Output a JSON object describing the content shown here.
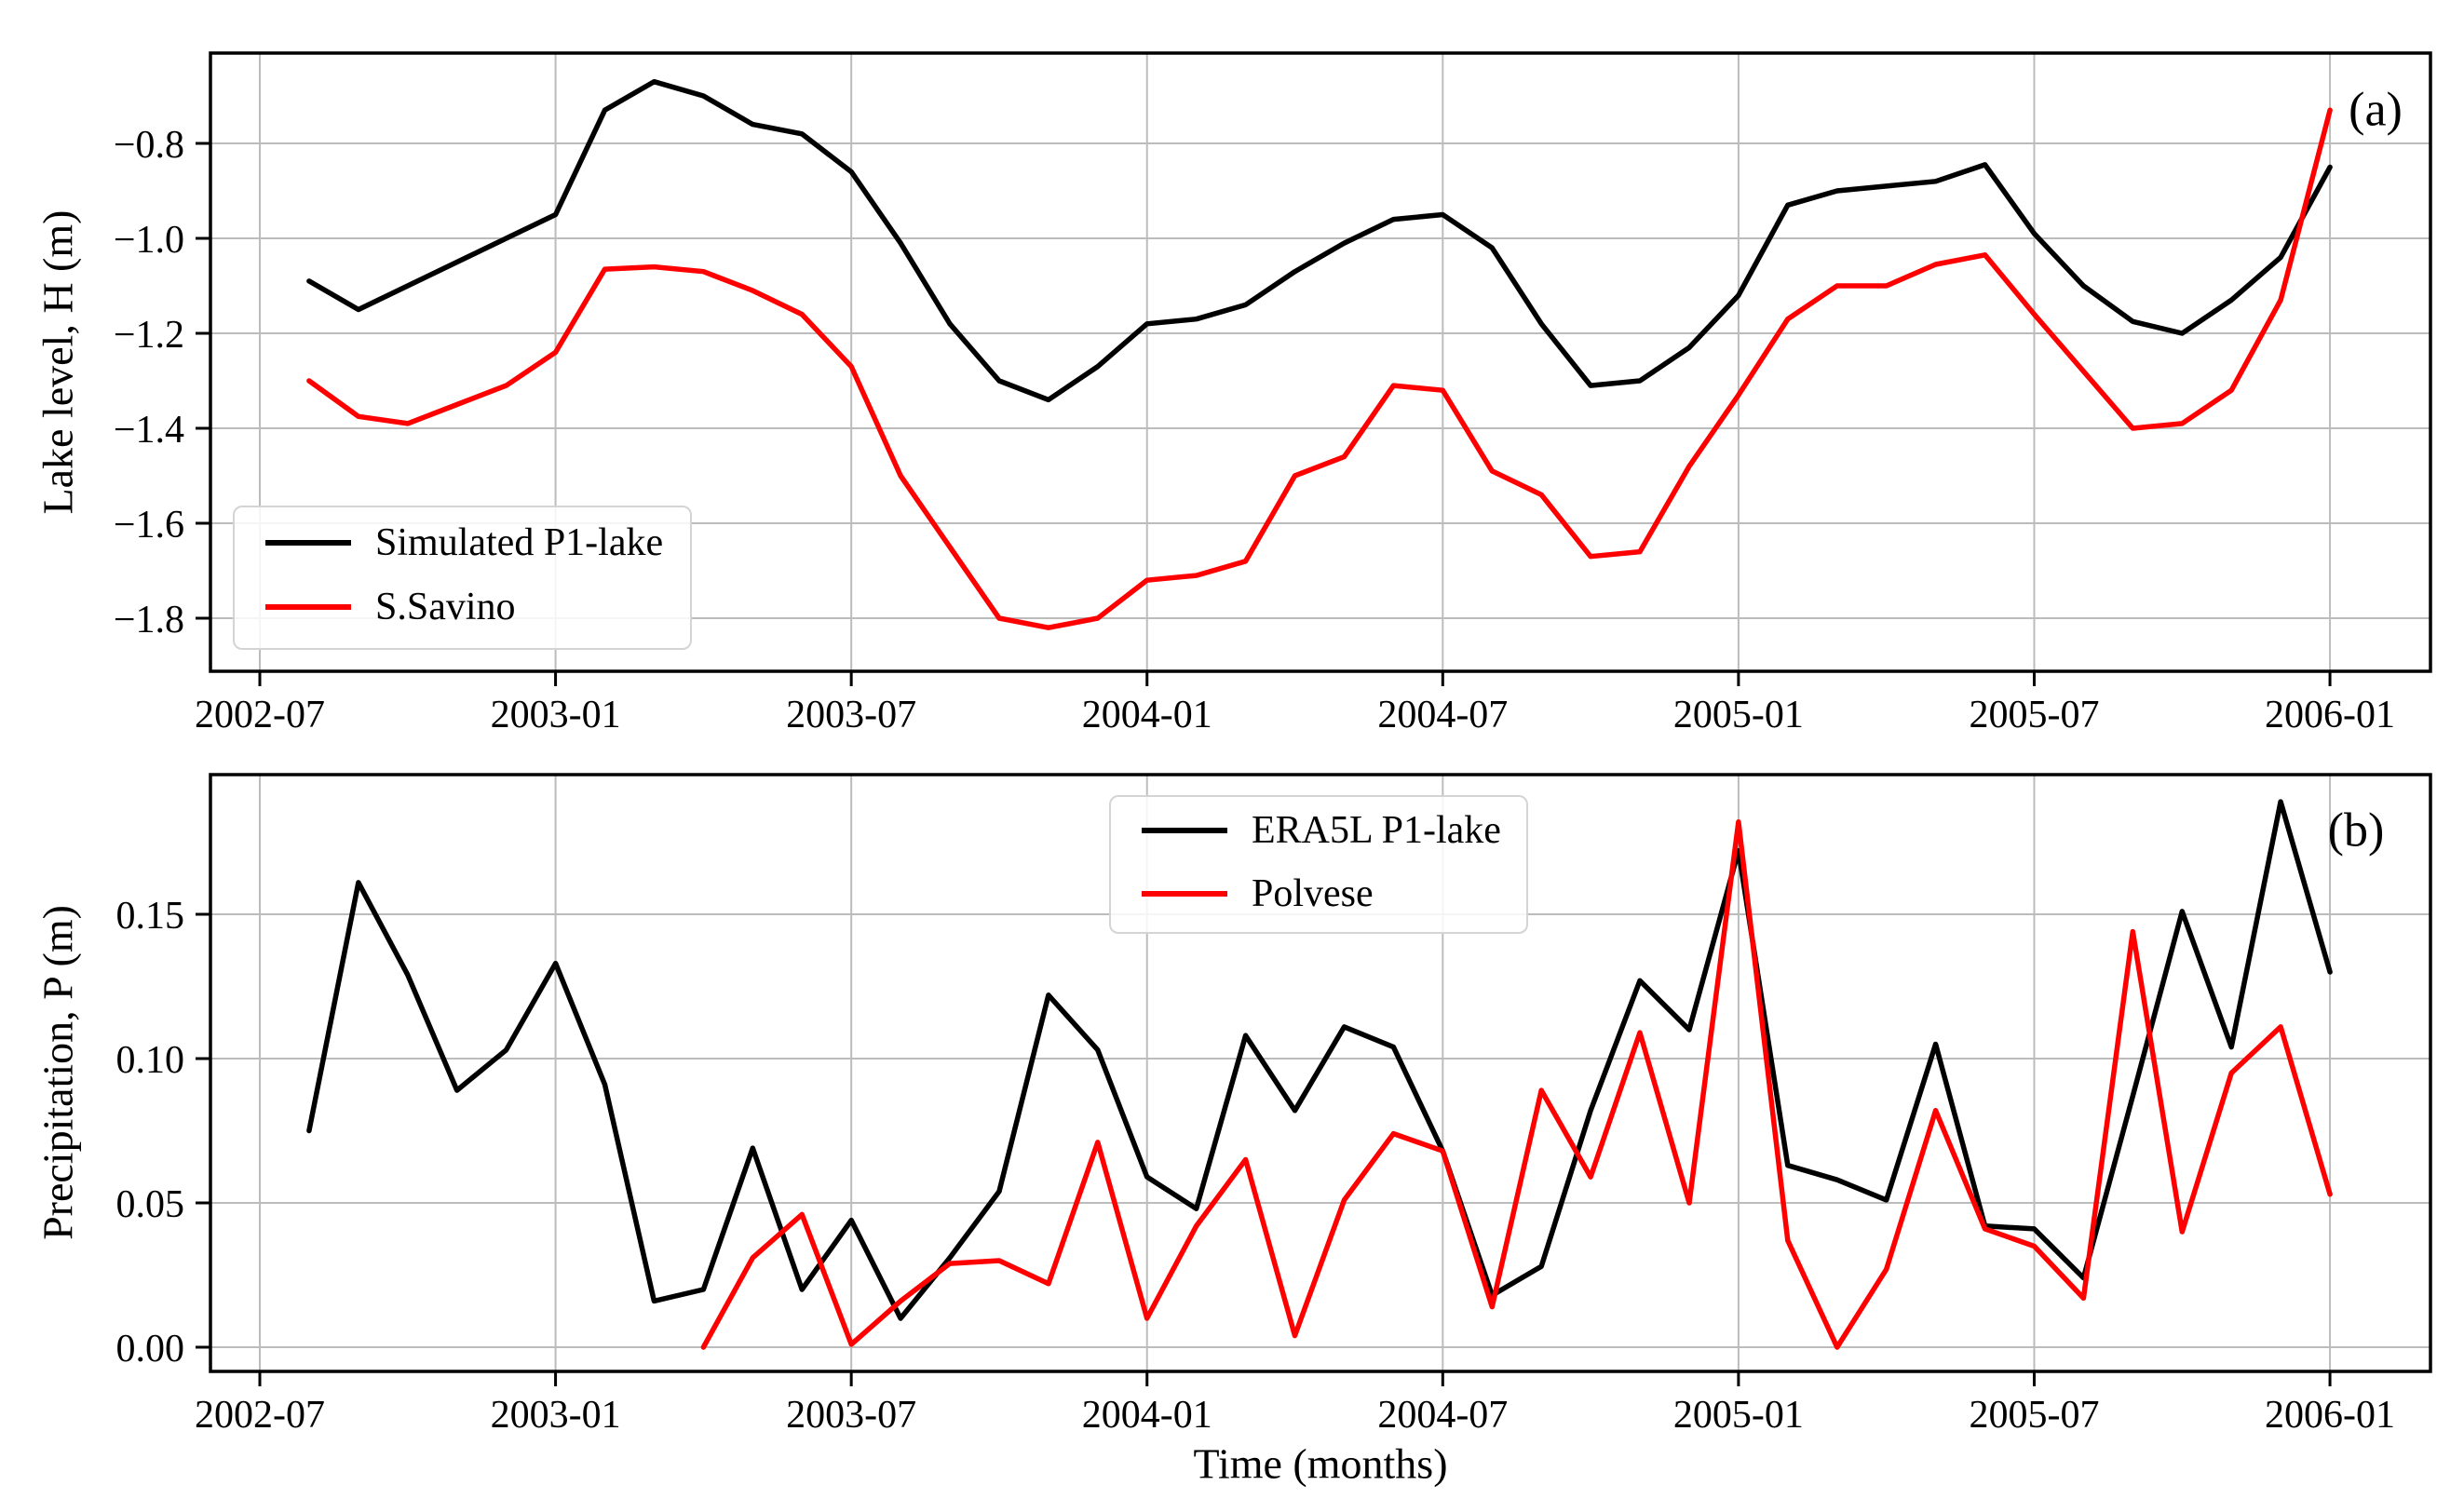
{
  "figure": {
    "panel_a_label": "(a)",
    "panel_b_label": "(b)",
    "x_axis_title": "Time (months)"
  },
  "chart_data": [
    {
      "type": "line",
      "panel": "a",
      "ylabel": "Lake level, H (m)",
      "xlabel": "",
      "grid": true,
      "legend_position": "lower left",
      "x_tick_labels": [
        "2002-07",
        "2003-01",
        "2003-07",
        "2004-01",
        "2004-07",
        "2005-01",
        "2005-07",
        "2006-01"
      ],
      "x_tick_offsets": [
        0,
        6,
        12,
        18,
        24,
        30,
        36,
        42
      ],
      "y_tick_labels": [
        "−0.8",
        "−1.0",
        "−1.2",
        "−1.4",
        "−1.6",
        "−1.8"
      ],
      "y_tick_values": [
        -0.8,
        -1.0,
        -1.2,
        -1.4,
        -1.6,
        -1.8
      ],
      "ylim": [
        -1.912,
        -0.61
      ],
      "categories": [
        "2002-08",
        "2002-09",
        "2002-10",
        "2002-11",
        "2002-12",
        "2003-01",
        "2003-02",
        "2003-03",
        "2003-04",
        "2003-05",
        "2003-06",
        "2003-07",
        "2003-08",
        "2003-09",
        "2003-10",
        "2003-11",
        "2003-12",
        "2004-01",
        "2004-02",
        "2004-03",
        "2004-04",
        "2004-05",
        "2004-06",
        "2004-07",
        "2004-08",
        "2004-09",
        "2004-10",
        "2004-11",
        "2004-12",
        "2005-01",
        "2005-02",
        "2005-03",
        "2005-04",
        "2005-05",
        "2005-06",
        "2005-07",
        "2005-08",
        "2005-09",
        "2005-10",
        "2005-11",
        "2005-12",
        "2006-01"
      ],
      "series": [
        {
          "name": "Simulated P1-lake",
          "color": "#000000",
          "start_month": "2002-08",
          "values": [
            -1.09,
            -1.15,
            -1.1,
            -1.05,
            -1.0,
            -0.95,
            -0.73,
            -0.67,
            -0.7,
            -0.76,
            -0.78,
            -0.86,
            -1.01,
            -1.18,
            -1.3,
            -1.34,
            -1.27,
            -1.18,
            -1.17,
            -1.14,
            -1.07,
            -1.01,
            -0.96,
            -0.95,
            -1.02,
            -1.18,
            -1.31,
            -1.3,
            -1.23,
            -1.12,
            -0.93,
            -0.9,
            -0.89,
            -0.88,
            -0.845,
            -0.99,
            -1.1,
            -1.175,
            -1.2,
            -1.13,
            -1.04,
            -0.85
          ]
        },
        {
          "name": "S.Savino",
          "color": "#ff0000",
          "start_month": "2002-08",
          "values": [
            -1.3,
            -1.375,
            -1.39,
            -1.35,
            -1.31,
            -1.24,
            -1.065,
            -1.06,
            -1.07,
            -1.11,
            -1.16,
            -1.27,
            -1.5,
            -1.65,
            -1.8,
            -1.82,
            -1.8,
            -1.72,
            -1.71,
            -1.68,
            -1.5,
            -1.46,
            -1.31,
            -1.32,
            -1.49,
            -1.54,
            -1.67,
            -1.66,
            -1.48,
            -1.33,
            -1.17,
            -1.1,
            -1.1,
            -1.055,
            -1.035,
            -1.16,
            -1.28,
            -1.4,
            -1.39,
            -1.32,
            -1.13,
            -0.73
          ]
        }
      ]
    },
    {
      "type": "line",
      "panel": "b",
      "ylabel": "Precipitation, P (m)",
      "xlabel": "Time (months)",
      "grid": true,
      "legend_position": "upper center",
      "x_tick_labels": [
        "2002-07",
        "2003-01",
        "2003-07",
        "2004-01",
        "2004-07",
        "2005-01",
        "2005-07",
        "2006-01"
      ],
      "x_tick_offsets": [
        0,
        6,
        12,
        18,
        24,
        30,
        36,
        42
      ],
      "y_tick_labels": [
        "0.15",
        "0.10",
        "0.05",
        "0.00"
      ],
      "y_tick_values": [
        0.15,
        0.1,
        0.05,
        0.0
      ],
      "ylim": [
        -0.0084,
        0.1984
      ],
      "categories": [
        "2002-08",
        "2002-09",
        "2002-10",
        "2002-11",
        "2002-12",
        "2003-01",
        "2003-02",
        "2003-03",
        "2003-04",
        "2003-05",
        "2003-06",
        "2003-07",
        "2003-08",
        "2003-09",
        "2003-10",
        "2003-11",
        "2003-12",
        "2004-01",
        "2004-02",
        "2004-03",
        "2004-04",
        "2004-05",
        "2004-06",
        "2004-07",
        "2004-08",
        "2004-09",
        "2004-10",
        "2004-11",
        "2004-12",
        "2005-01",
        "2005-02",
        "2005-03",
        "2005-04",
        "2005-05",
        "2005-06",
        "2005-07",
        "2005-08",
        "2005-09",
        "2005-10",
        "2005-11",
        "2005-12",
        "2006-01"
      ],
      "series": [
        {
          "name": "ERA5L P1-lake",
          "color": "#000000",
          "start_month": "2002-08",
          "values": [
            0.075,
            0.161,
            0.129,
            0.089,
            0.103,
            0.133,
            0.091,
            0.016,
            0.02,
            0.069,
            0.02,
            0.044,
            0.01,
            0.031,
            0.054,
            0.122,
            0.103,
            0.059,
            0.048,
            0.108,
            0.082,
            0.111,
            0.104,
            0.068,
            0.018,
            0.028,
            0.082,
            0.127,
            0.11,
            0.172,
            0.063,
            0.058,
            0.051,
            0.105,
            0.042,
            0.041,
            0.024,
            0.087,
            0.151,
            0.104,
            0.189,
            0.13
          ]
        },
        {
          "name": "Polvese",
          "color": "#ff0000",
          "start_month": "2003-04",
          "values": [
            0.0,
            0.031,
            0.046,
            0.001,
            0.016,
            0.029,
            0.03,
            0.022,
            0.071,
            0.01,
            0.042,
            0.065,
            0.004,
            0.051,
            0.074,
            0.068,
            0.014,
            0.089,
            0.059,
            0.109,
            0.05,
            0.182,
            0.037,
            0.0,
            0.027,
            0.082,
            0.041,
            0.035,
            0.017,
            0.144,
            0.04,
            0.095,
            0.111,
            0.053
          ]
        }
      ]
    }
  ]
}
